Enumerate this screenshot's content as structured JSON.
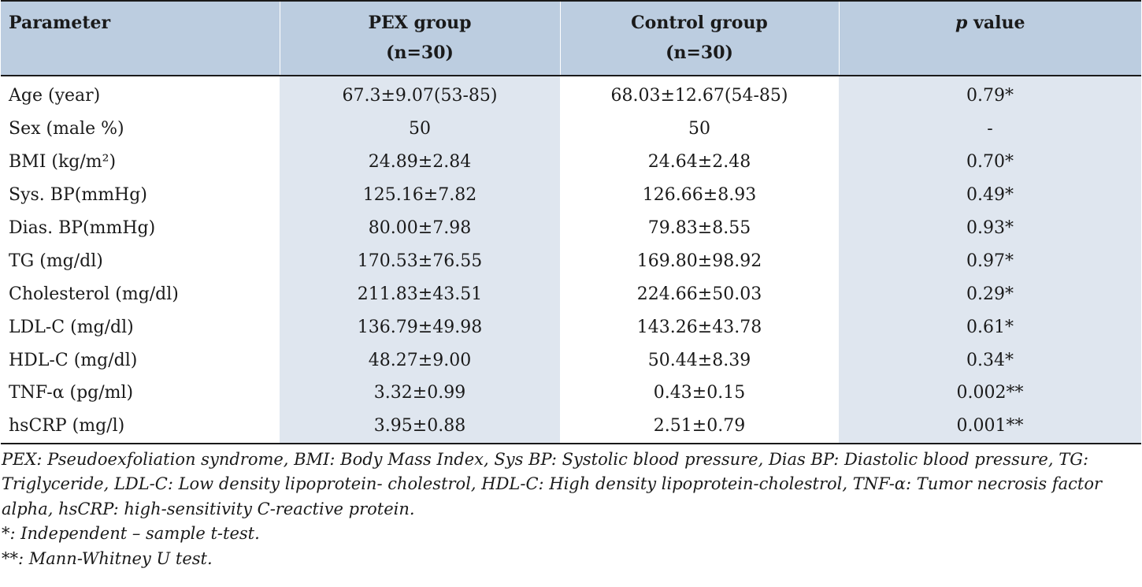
{
  "table": {
    "headers": {
      "parameter": "Parameter",
      "pex_line1": "PEX  group",
      "pex_line2": "(n=30)",
      "control_line1": "Control group",
      "control_line2": "(n=30)",
      "p_italic": "p",
      "p_rest": " value"
    },
    "rows": [
      {
        "parameter": "Age (year)",
        "pex": "67.3±9.07(53-85)",
        "control": "68.03±12.67(54-85)",
        "p": "0.79*"
      },
      {
        "parameter": "Sex (male %)",
        "pex": "50",
        "control": "50",
        "p": "-"
      },
      {
        "parameter": "BMI (kg/m²)",
        "pex": "24.89±2.84",
        "control": "24.64±2.48",
        "p": "0.70*"
      },
      {
        "parameter": "Sys. BP(mmHg)",
        "pex": "125.16±7.82",
        "control": "126.66±8.93",
        "p": "0.49*"
      },
      {
        "parameter": "Dias. BP(mmHg)",
        "pex": "80.00±7.98",
        "control": "79.83±8.55",
        "p": "0.93*"
      },
      {
        "parameter": "TG (mg/dl)",
        "pex": "170.53±76.55",
        "control": "169.80±98.92",
        "p": "0.97*"
      },
      {
        "parameter": "Cholesterol (mg/dl)",
        "pex": "211.83±43.51",
        "control": "224.66±50.03",
        "p": "0.29*"
      },
      {
        "parameter": "LDL-C (mg/dl)",
        "pex": "136.79±49.98",
        "control": "143.26±43.78",
        "p": "0.61*"
      },
      {
        "parameter": "HDL-C (mg/dl)",
        "pex": "48.27±9.00",
        "control": "50.44±8.39",
        "p": "0.34*"
      },
      {
        "parameter": "TNF-α (pg/ml)",
        "pex": "3.32±0.99",
        "control": "0.43±0.15",
        "p": "0.002**"
      },
      {
        "parameter": "hsCRP (mg/l)",
        "pex": "3.95±0.88",
        "control": "2.51±0.79",
        "p": "0.001**"
      }
    ]
  },
  "notes": {
    "abbreviations": "PEX: Pseudoexfoliation syndrome, BMI: Body Mass Index, Sys BP: Systolic blood pressure, Dias BP: Diastolic blood pressure, TG: Triglyceride, LDL-C: Low density lipoprotein- cholestrol, HDL-C: High density lipoprotein-cholestrol, TNF-α: Tumor necrosis factor alpha, hsCRP: high-sensitivity C-reactive protein.",
    "single_star": "*: Independent – sample t-test.",
    "double_star": "**: Mann-Whitney U test."
  },
  "colors": {
    "header_bg": "#bccde0",
    "shaded_column_bg": "#dfe6ef",
    "rule": "#1a1a1a"
  }
}
